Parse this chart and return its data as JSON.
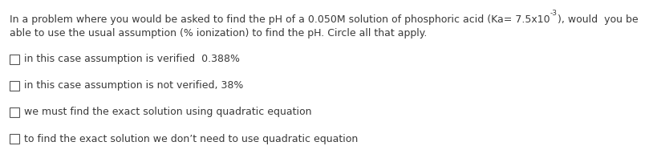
{
  "background_color": "#ffffff",
  "text_color": "#3a3a3a",
  "box_color": "#555555",
  "font_size": 9.0,
  "header_line1_pre": "In a problem where you would be asked to find the pH of a 0.050M solution of phosphoric acid (Ka= 7.5x10",
  "header_superscript": "-3",
  "header_line1_post": "), would  you be",
  "header_line2": "able to use the usual assumption (% ionization) to find the pH. Circle all that apply.",
  "options": [
    "in this case assumption is verified  0.388%",
    "in this case assumption is not verified, 38%",
    "we must find the exact solution using quadratic equation",
    "to find the exact solution we don’t need to use quadratic equation"
  ],
  "fig_width": 8.14,
  "fig_height": 1.92,
  "dpi": 100
}
